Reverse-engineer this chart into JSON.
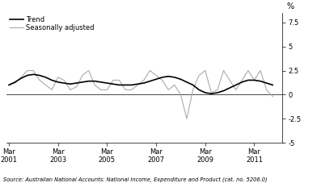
{
  "title": "",
  "ylabel_right": "%",
  "source_text": "Source: Australian National Accounts: National Income, Expenditure and Product (cat. no. 5206.0)",
  "ylim": [
    -5.0,
    8.5
  ],
  "yticks": [
    -5.0,
    -2.5,
    0.0,
    2.5,
    5.0,
    7.5
  ],
  "xtick_years": [
    2001,
    2003,
    2005,
    2007,
    2009,
    2011
  ],
  "legend_entries": [
    "Trend",
    "Seasonally adjusted"
  ],
  "trend_color": "#000000",
  "seasonal_color": "#aaaaaa",
  "trend_linewidth": 1.2,
  "seasonal_linewidth": 0.8,
  "background_color": "#ffffff",
  "trend_data": [
    1.0,
    1.3,
    1.7,
    2.0,
    2.1,
    2.0,
    1.8,
    1.5,
    1.3,
    1.2,
    1.1,
    1.2,
    1.3,
    1.4,
    1.4,
    1.3,
    1.2,
    1.1,
    1.0,
    1.0,
    1.0,
    1.1,
    1.2,
    1.4,
    1.6,
    1.8,
    1.9,
    1.8,
    1.6,
    1.3,
    1.0,
    0.5,
    0.2,
    0.1,
    0.2,
    0.4,
    0.7,
    1.0,
    1.3,
    1.5,
    1.5,
    1.4,
    1.2,
    1.0
  ],
  "seasonal_data": [
    1.0,
    1.2,
    1.8,
    2.5,
    2.5,
    1.5,
    1.0,
    0.5,
    1.8,
    1.5,
    0.5,
    0.8,
    2.0,
    2.5,
    1.0,
    0.5,
    0.5,
    1.5,
    1.5,
    0.5,
    0.5,
    1.0,
    1.5,
    2.5,
    2.0,
    1.5,
    0.5,
    1.0,
    0.0,
    -2.5,
    0.5,
    2.0,
    2.5,
    0.2,
    0.5,
    2.5,
    1.5,
    0.5,
    1.5,
    2.5,
    1.5,
    2.5,
    0.5,
    -0.2
  ],
  "n_quarters": 44,
  "start_year": 2001
}
